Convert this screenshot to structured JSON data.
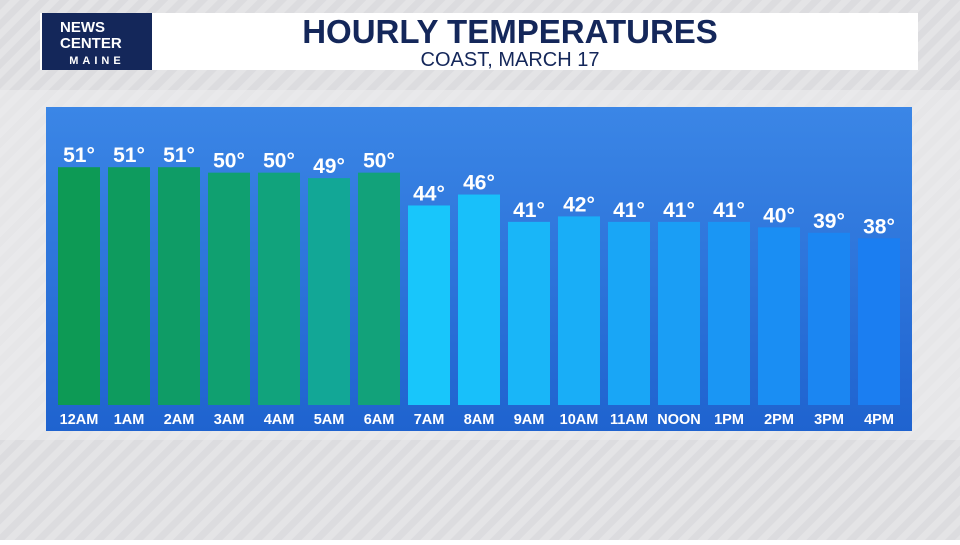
{
  "logo": [
    "NEWS",
    "CENTER",
    "MAINE"
  ],
  "chart_data": {
    "type": "bar",
    "title": "HOURLY TEMPERATURES",
    "subtitle": "COAST, MARCH 17",
    "categories": [
      "12AM",
      "1AM",
      "2AM",
      "3AM",
      "4AM",
      "5AM",
      "6AM",
      "7AM",
      "8AM",
      "9AM",
      "10AM",
      "11AM",
      "NOON",
      "1PM",
      "2PM",
      "3PM",
      "4PM"
    ],
    "values": [
      51,
      51,
      51,
      50,
      50,
      49,
      50,
      44,
      46,
      41,
      42,
      41,
      41,
      41,
      40,
      39,
      38
    ],
    "value_labels": [
      "51°",
      "51°",
      "51°",
      "50°",
      "50°",
      "49°",
      "50°",
      "44°",
      "46°",
      "41°",
      "42°",
      "41°",
      "41°",
      "41°",
      "40°",
      "39°",
      "38°"
    ],
    "colors": [
      "#0d9a55",
      "#0e9b5e",
      "#0f9c66",
      "#10a070",
      "#11a37c",
      "#12a796",
      "#12a27a",
      "#18c6fb",
      "#18c0fa",
      "#19b6f8",
      "#19aef7",
      "#19a6f6",
      "#1a9ef5",
      "#1a96f4",
      "#1a8ef3",
      "#1b86f2",
      "#1b7ef1"
    ],
    "ylim": [
      7.5,
      60
    ]
  }
}
